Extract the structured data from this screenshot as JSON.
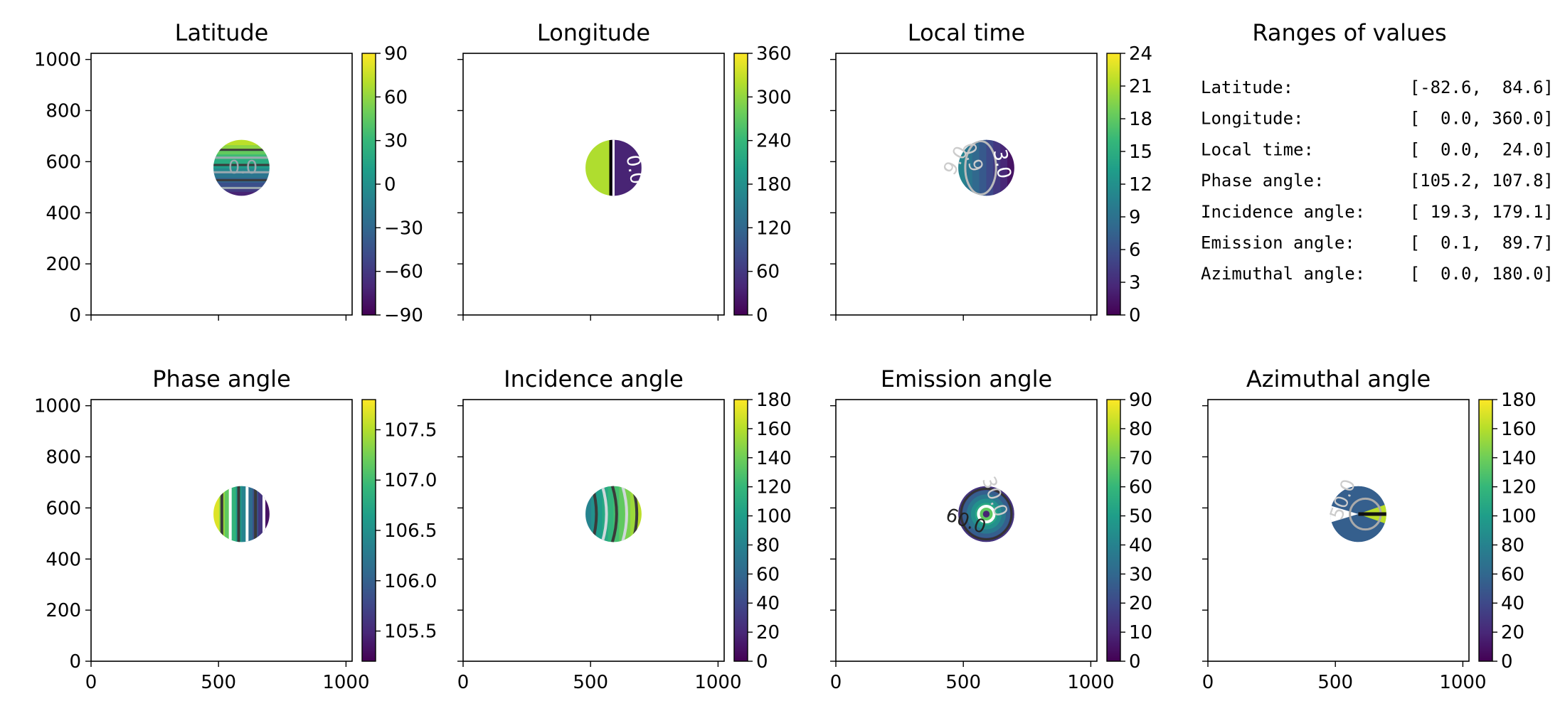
{
  "chart_data": [
    {
      "type": "heatmap",
      "title": "Latitude",
      "xlim": [
        0,
        1024
      ],
      "ylim": [
        0,
        1024
      ],
      "xticks": [
        0,
        500,
        1000
      ],
      "yticks": [
        0,
        200,
        400,
        600,
        800,
        1000
      ],
      "show_xticklabels": false,
      "show_yticklabels": true,
      "disk": {
        "cx": 590,
        "cy": 576,
        "r": 110
      },
      "pattern": "lat",
      "colorbar": {
        "min": -90,
        "max": 90,
        "ticks": [
          "90",
          "60",
          "30",
          "0",
          "−30",
          "−60",
          "−90"
        ],
        "tick_values": [
          90,
          60,
          30,
          0,
          -30,
          -60,
          -90
        ]
      },
      "contour_labels": [
        {
          "text": "0.0",
          "color": "#9aa9b0"
        }
      ]
    },
    {
      "type": "heatmap",
      "title": "Longitude",
      "xlim": [
        0,
        1024
      ],
      "ylim": [
        0,
        1024
      ],
      "xticks": [
        0,
        500,
        1000
      ],
      "yticks": [
        0,
        200,
        400,
        600,
        800,
        1000
      ],
      "show_xticklabels": false,
      "show_yticklabels": false,
      "disk": {
        "cx": 590,
        "cy": 576,
        "r": 110
      },
      "pattern": "lon",
      "colorbar": {
        "min": 0,
        "max": 360,
        "ticks": [
          "360",
          "300",
          "240",
          "180",
          "120",
          "60",
          "0"
        ],
        "tick_values": [
          360,
          300,
          240,
          180,
          120,
          60,
          0
        ]
      },
      "contour_labels": [
        {
          "text": "0.0",
          "color": "#ffffff"
        }
      ]
    },
    {
      "type": "heatmap",
      "title": "Local time",
      "xlim": [
        0,
        1024
      ],
      "ylim": [
        0,
        1024
      ],
      "xticks": [
        0,
        500,
        1000
      ],
      "yticks": [
        0,
        200,
        400,
        600,
        800,
        1000
      ],
      "show_xticklabels": false,
      "show_yticklabels": false,
      "disk": {
        "cx": 590,
        "cy": 576,
        "r": 110
      },
      "pattern": "lt",
      "colorbar": {
        "min": 0,
        "max": 24,
        "ticks": [
          "24",
          "21",
          "18",
          "15",
          "12",
          "9",
          "6",
          "3",
          "0"
        ],
        "tick_values": [
          24,
          21,
          18,
          15,
          12,
          9,
          6,
          3,
          0
        ]
      },
      "contour_labels": [
        {
          "text": "3.0",
          "color": "#ffffff"
        },
        {
          "text": "0.9",
          "color": "#cccccc"
        },
        {
          "text": "9.0",
          "color": "#cccccc"
        }
      ]
    },
    {
      "type": "heatmap",
      "title": "Phase angle",
      "xlim": [
        0,
        1024
      ],
      "ylim": [
        0,
        1024
      ],
      "xticks": [
        0,
        500,
        1000
      ],
      "yticks": [
        0,
        200,
        400,
        600,
        800,
        1000
      ],
      "show_xticklabels": true,
      "show_yticklabels": true,
      "disk": {
        "cx": 590,
        "cy": 576,
        "r": 110
      },
      "pattern": "phase",
      "colorbar": {
        "min": 105.2,
        "max": 107.8,
        "ticks": [
          "107.5",
          "107.0",
          "106.5",
          "106.0",
          "105.5"
        ],
        "tick_values": [
          107.5,
          107.0,
          106.5,
          106.0,
          105.5
        ]
      },
      "contour_labels": []
    },
    {
      "type": "heatmap",
      "title": "Incidence angle",
      "xlim": [
        0,
        1024
      ],
      "ylim": [
        0,
        1024
      ],
      "xticks": [
        0,
        500,
        1000
      ],
      "yticks": [
        0,
        200,
        400,
        600,
        800,
        1000
      ],
      "show_xticklabels": true,
      "show_yticklabels": false,
      "disk": {
        "cx": 590,
        "cy": 576,
        "r": 110
      },
      "pattern": "inc",
      "colorbar": {
        "min": 0,
        "max": 180,
        "ticks": [
          "180",
          "160",
          "140",
          "120",
          "100",
          "80",
          "60",
          "40",
          "20",
          "0"
        ],
        "tick_values": [
          180,
          160,
          140,
          120,
          100,
          80,
          60,
          40,
          20,
          0
        ]
      },
      "contour_labels": []
    },
    {
      "type": "heatmap",
      "title": "Emission angle",
      "xlim": [
        0,
        1024
      ],
      "ylim": [
        0,
        1024
      ],
      "xticks": [
        0,
        500,
        1000
      ],
      "yticks": [
        0,
        200,
        400,
        600,
        800,
        1000
      ],
      "show_xticklabels": true,
      "show_yticklabels": false,
      "disk": {
        "cx": 590,
        "cy": 576,
        "r": 110
      },
      "pattern": "emi",
      "colorbar": {
        "min": 0,
        "max": 90,
        "ticks": [
          "90",
          "80",
          "70",
          "60",
          "50",
          "40",
          "30",
          "20",
          "10",
          "0"
        ],
        "tick_values": [
          90,
          80,
          70,
          60,
          50,
          40,
          30,
          20,
          10,
          0
        ]
      },
      "contour_labels": [
        {
          "text": "30.0",
          "color": "#cccccc"
        },
        {
          "text": "60.0",
          "color": "#222222"
        }
      ]
    },
    {
      "type": "heatmap",
      "title": "Azimuthal angle",
      "xlim": [
        0,
        1024
      ],
      "ylim": [
        0,
        1024
      ],
      "xticks": [
        0,
        500,
        1000
      ],
      "yticks": [
        0,
        200,
        400,
        600,
        800,
        1000
      ],
      "show_xticklabels": true,
      "show_yticklabels": false,
      "disk": {
        "cx": 590,
        "cy": 576,
        "r": 110
      },
      "pattern": "azi",
      "colorbar": {
        "min": 0,
        "max": 180,
        "ticks": [
          "180",
          "160",
          "140",
          "120",
          "100",
          "80",
          "60",
          "40",
          "20",
          "0"
        ],
        "tick_values": [
          180,
          160,
          140,
          120,
          100,
          80,
          60,
          40,
          20,
          0
        ]
      },
      "contour_labels": [
        {
          "text": "50.0",
          "color": "#cccccc"
        }
      ]
    },
    {
      "type": "table",
      "title": "Ranges of values",
      "rows": [
        {
          "label": "Latitude:",
          "range": "[-82.6,  84.6]"
        },
        {
          "label": "Longitude:",
          "range": "[  0.0, 360.0]"
        },
        {
          "label": "Local time:",
          "range": "[  0.0,  24.0]"
        },
        {
          "label": "Phase angle:",
          "range": "[105.2, 107.8]"
        },
        {
          "label": "Incidence angle:",
          "range": "[ 19.3, 179.1]"
        },
        {
          "label": "Emission angle:",
          "range": "[  0.1,  89.7]"
        },
        {
          "label": "Azimuthal angle:",
          "range": "[  0.0, 180.0]"
        }
      ]
    }
  ],
  "colormap": [
    "#440154",
    "#482878",
    "#3e4989",
    "#31688e",
    "#26828e",
    "#1f9e89",
    "#35b779",
    "#6ece58",
    "#b5de2b",
    "#fde725"
  ]
}
